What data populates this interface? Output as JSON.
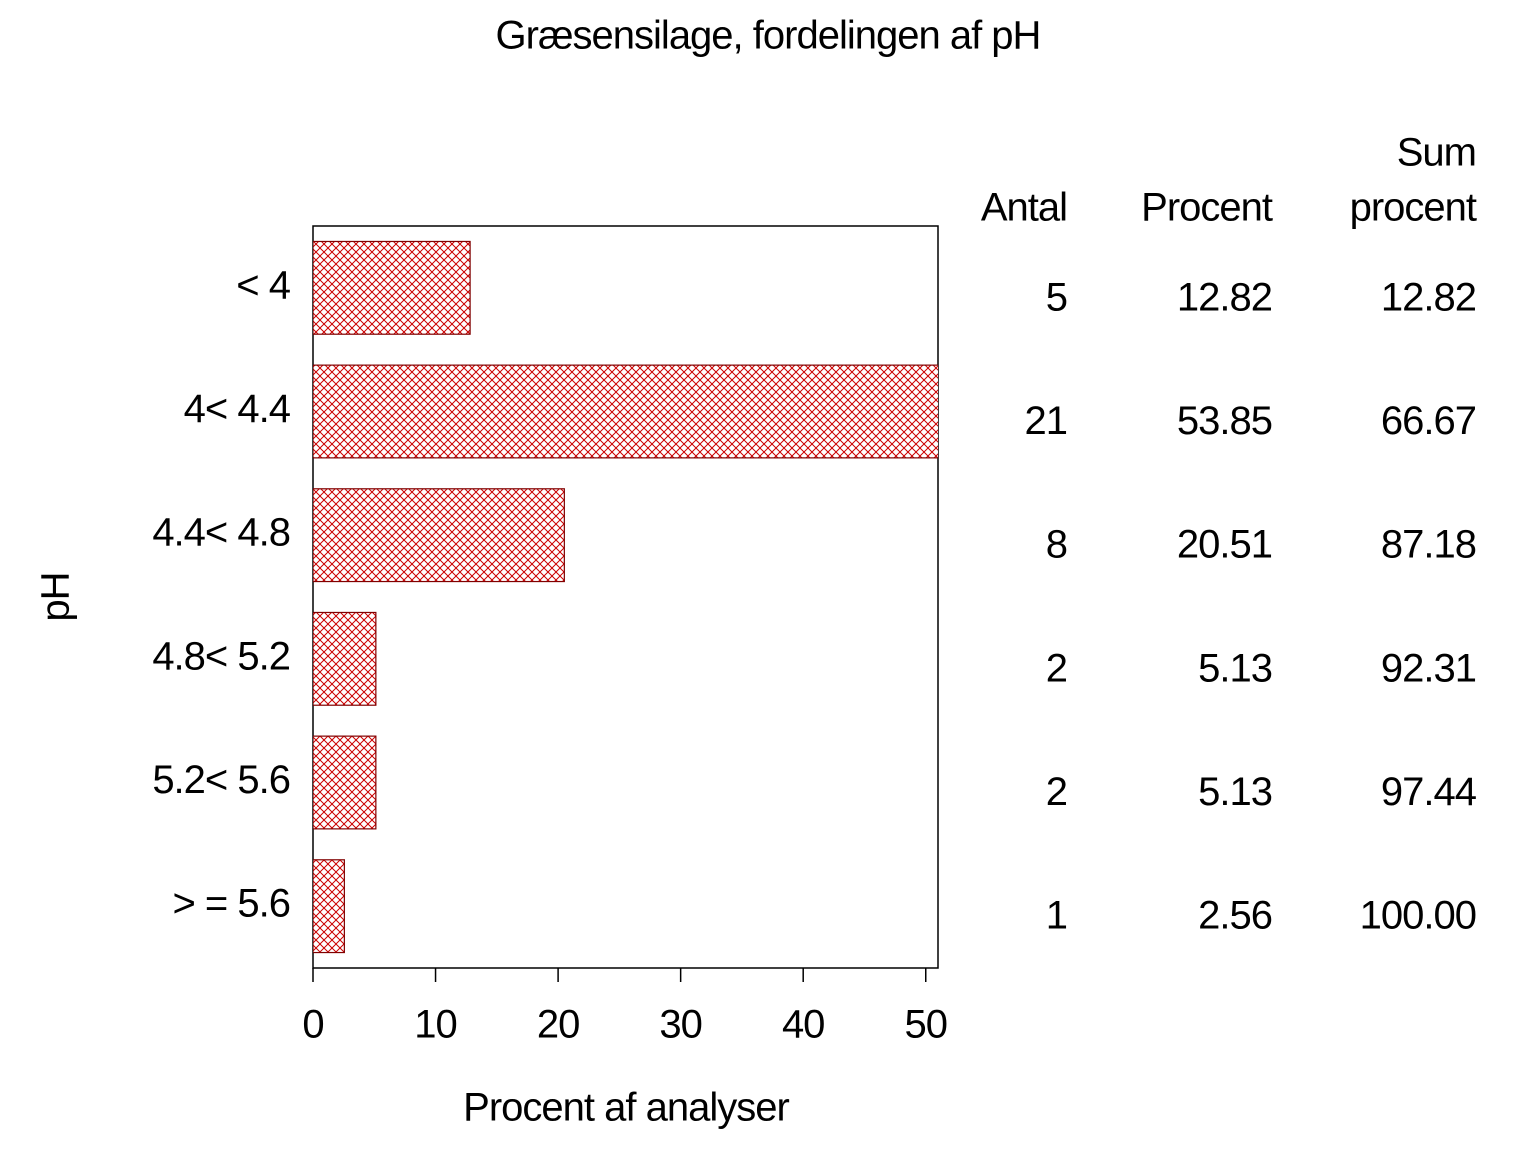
{
  "chart_data": {
    "type": "bar",
    "orientation": "horizontal",
    "title": "Græsensilage,  fordelingen  af  pH",
    "x_label": "Procent  af  analyser",
    "y_label": "pH",
    "categories": [
      "< 4",
      "4< 4.4",
      "4.4< 4.8",
      "4.8< 5.2",
      "5.2< 5.6",
      "> = 5.6"
    ],
    "values": [
      12.82,
      53.85,
      20.51,
      5.13,
      5.13,
      2.56
    ],
    "color": "#cc0000",
    "xlim": [
      0,
      51
    ],
    "xticks": [
      0,
      10,
      20,
      30,
      40,
      50
    ],
    "table": {
      "headers": [
        [
          "Antal"
        ],
        [
          "Procent"
        ],
        [
          "Sum",
          "procent"
        ]
      ],
      "counts": [
        5,
        21,
        8,
        2,
        2,
        1
      ],
      "cumulative": [
        12.82,
        66.67,
        87.18,
        92.31,
        97.44,
        100
      ],
      "cumulative_labels": [
        "12.82",
        "66.67",
        "87.18",
        "92.31",
        "97.44",
        "100.00"
      ]
    }
  }
}
